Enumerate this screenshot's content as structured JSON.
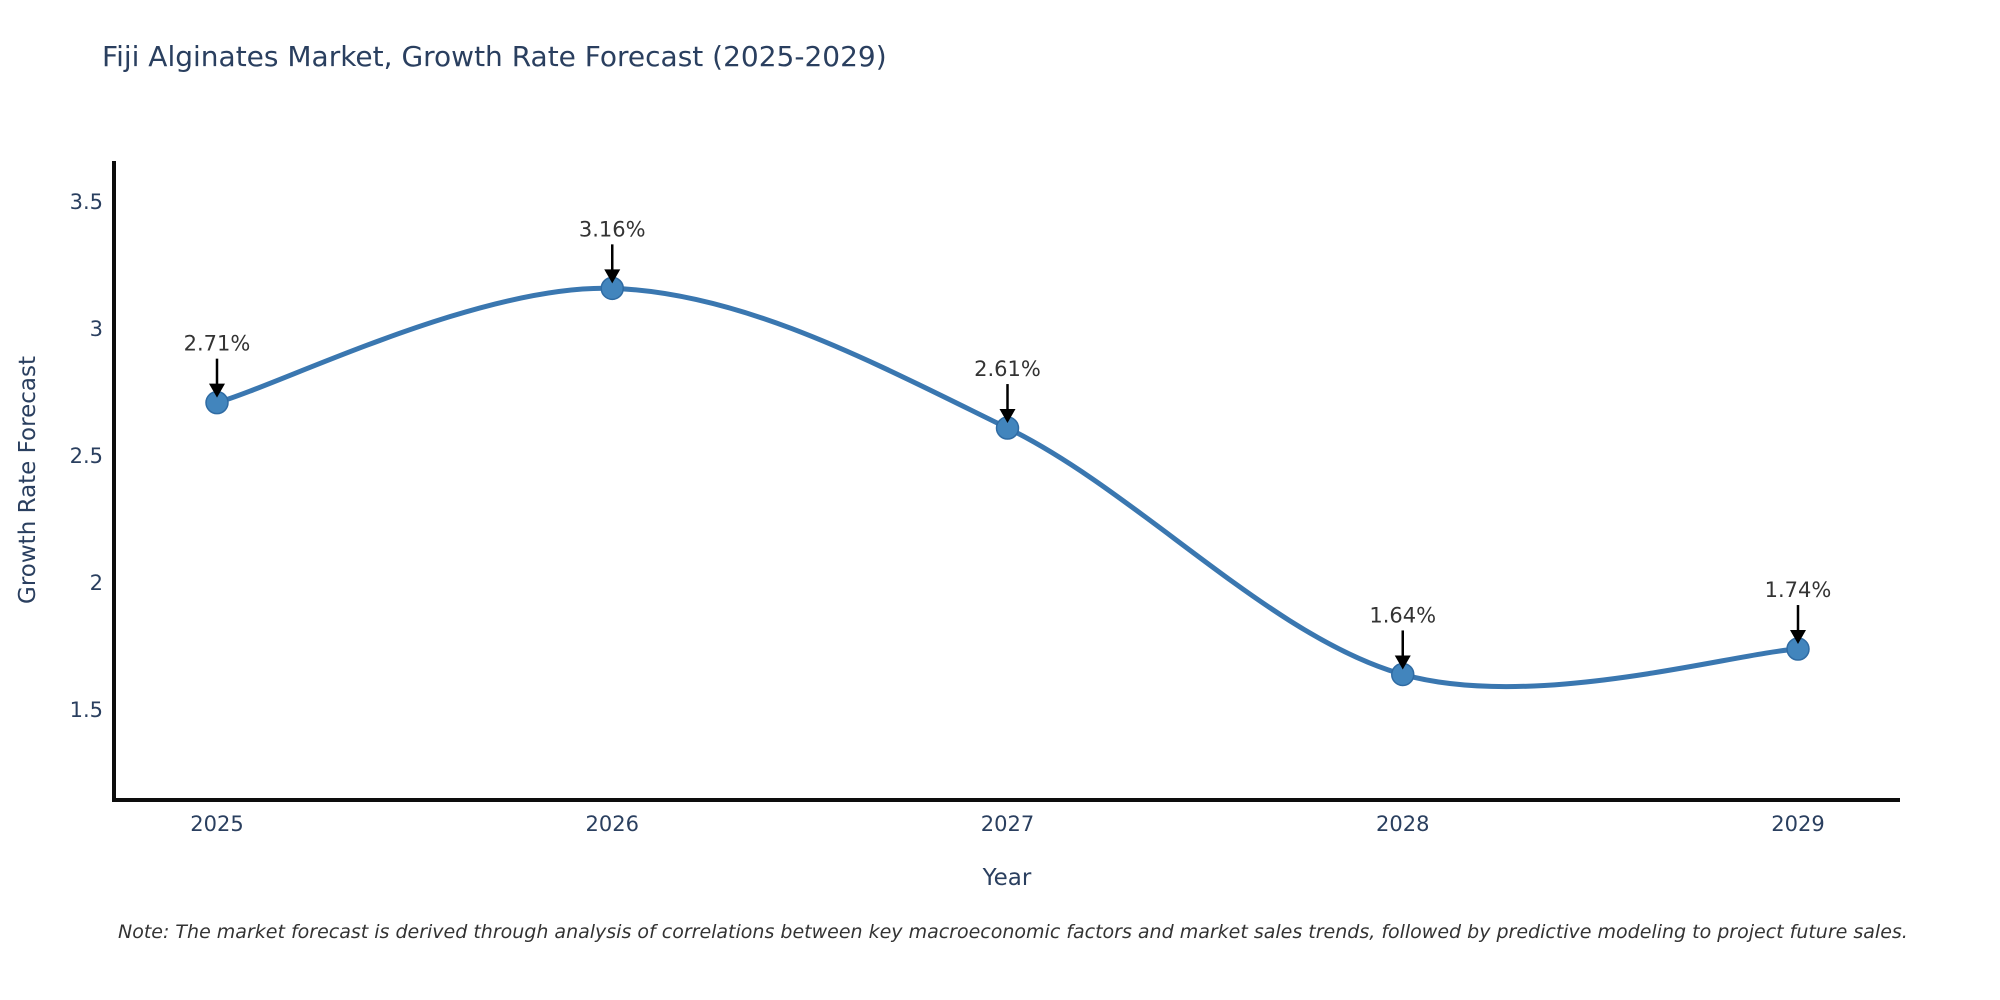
{
  "title": "Fiji Alginates Market, Growth Rate Forecast (2025-2029)",
  "note": "Note: The market forecast is derived through analysis of correlations between key macroeconomic factors and market sales trends, followed by predictive modeling to project future sales.",
  "chart_data": {
    "type": "line",
    "line_shape": "spline",
    "title": "Fiji Alginates Market, Growth Rate Forecast (2025-2029)",
    "xlabel": "Year",
    "ylabel": "Growth Rate Forecast",
    "categories": [
      2025,
      2026,
      2027,
      2028,
      2029
    ],
    "series": [
      {
        "name": "Growth Rate Forecast",
        "values": [
          2.71,
          3.16,
          2.61,
          1.64,
          1.74
        ]
      }
    ],
    "point_labels": [
      "2.71%",
      "3.16%",
      "2.61%",
      "1.64%",
      "1.74%"
    ],
    "yticks": [
      1.5,
      2,
      2.5,
      3,
      3.5
    ],
    "ylim": [
      1.15,
      3.66
    ],
    "grid": false,
    "legend": "none",
    "annotations": "value labels with downward arrows above each point",
    "colors": {
      "line": "#3a77b0",
      "marker": "#4285bd",
      "marker_edge": "#2f6ba3",
      "axis": "#0d0d0d",
      "tick_text": "#2a3f5f",
      "annotation_text": "#333333",
      "annotation_arrow": "#000000",
      "background": "#ffffff"
    }
  }
}
